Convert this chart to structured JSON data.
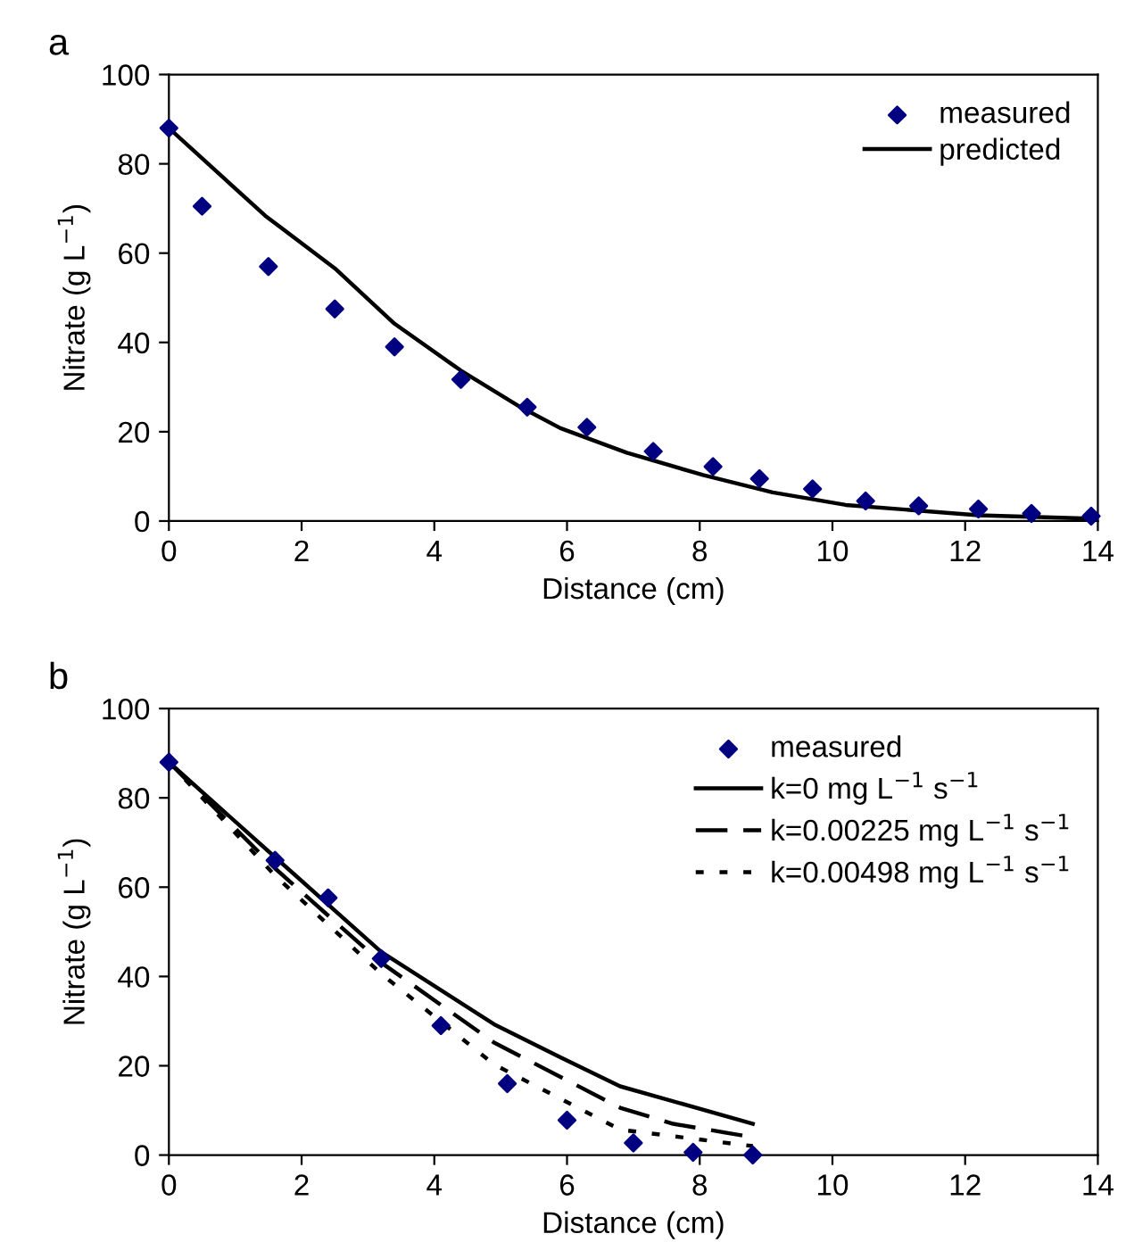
{
  "chart_data": [
    {
      "type": "scatter",
      "title": "a",
      "xlabel": "Distance (cm)",
      "ylabel": "Nitrate (g L$^{−1}$)",
      "xlim": [
        0,
        14
      ],
      "ylim": [
        0,
        100
      ],
      "xticks": [
        0,
        2,
        4,
        6,
        8,
        10,
        12,
        14
      ],
      "yticks": [
        0,
        20,
        40,
        60,
        80,
        100
      ],
      "grid": false,
      "legend": "top right",
      "series": [
        {
          "name": "measured",
          "color": "#000080",
          "marker": "diamond",
          "x": [
            0,
            0.5,
            1.5,
            2.5,
            3.4,
            4.4,
            5.4,
            6.3,
            7.3,
            8.2,
            8.9,
            9.7,
            10.5,
            11.3,
            12.2,
            13.0,
            13.9
          ],
          "values": [
            88,
            70.5,
            57,
            47.5,
            39,
            31.7,
            25.5,
            21,
            15.6,
            12.2,
            9.5,
            7.2,
            4.5,
            3.4,
            2.7,
            1.7,
            1.1
          ]
        },
        {
          "name": "predicted",
          "type": "line",
          "color": "#000000",
          "line_style": "solid",
          "x": [
            0,
            1.45,
            2.5,
            3.4,
            4.4,
            5.3,
            5.9,
            6.9,
            8.05,
            9.1,
            10.2,
            12.2,
            14
          ],
          "values": [
            88,
            68.4,
            56.6,
            44.2,
            33.7,
            25.5,
            20.8,
            15.3,
            10.3,
            6.4,
            3.6,
            1.3,
            0.5
          ]
        }
      ]
    },
    {
      "type": "scatter",
      "title": "b",
      "xlabel": "Distance (cm)",
      "ylabel": "Nitrate (g L$^{−1}$)",
      "xlim": [
        0,
        14
      ],
      "ylim": [
        0,
        100
      ],
      "xticks": [
        0,
        2,
        4,
        6,
        8,
        10,
        12,
        14
      ],
      "yticks": [
        0,
        20,
        40,
        60,
        80,
        100
      ],
      "grid": false,
      "legend": "top right",
      "series": [
        {
          "name": "measured",
          "color": "#000080",
          "marker": "diamond",
          "x": [
            0,
            1.6,
            2.4,
            3.2,
            4.1,
            5.1,
            6.0,
            7.0,
            7.9,
            8.8
          ],
          "values": [
            88,
            66,
            57.6,
            44,
            29,
            16,
            7.8,
            2.7,
            0.6,
            0
          ]
        },
        {
          "name": "k=0 mg L$^{−1}$ s$^{−1}$",
          "type": "line",
          "color": "#000000",
          "line_style": "solid",
          "x": [
            0,
            1.6,
            3.2,
            4.9,
            5.9,
            6.8,
            8.8
          ],
          "values": [
            88,
            66.7,
            45.5,
            29.3,
            21.9,
            15.4,
            7
          ]
        },
        {
          "name": "k=0.00225 mg L$^{−1}$ s$^{−1}$",
          "type": "line",
          "color": "#000000",
          "line_style": "dashed",
          "x": [
            0,
            1.6,
            3.2,
            4.9,
            6.8,
            7.6,
            8.8
          ],
          "values": [
            88,
            64.2,
            43.1,
            25.2,
            10.6,
            7,
            4
          ]
        },
        {
          "name": "k=0.00498 mg L$^{−1}$ s$^{−1}$",
          "type": "line",
          "color": "#000000",
          "line_style": "dotted",
          "x": [
            0,
            1.6,
            3.2,
            4.9,
            6.8,
            8.8
          ],
          "values": [
            88,
            62.6,
            40.6,
            20.3,
            5.7,
            2
          ]
        }
      ]
    }
  ]
}
